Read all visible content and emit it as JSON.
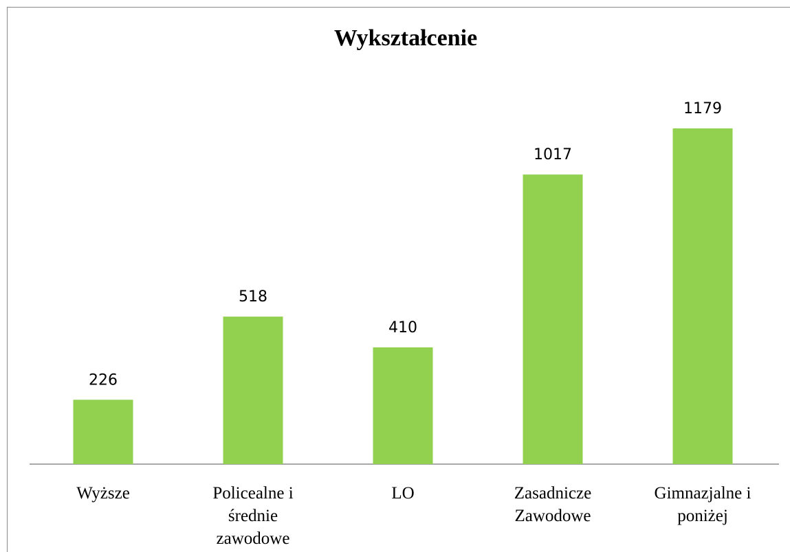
{
  "chart_data": {
    "type": "bar",
    "title": "Wykształcenie",
    "categories": [
      "Wyższe",
      "Policealne i średnie zawodowe",
      "LO",
      "Zasadnicze Zawodowe",
      "Gimnazjalne i poniżej"
    ],
    "values": [
      226,
      518,
      410,
      1017,
      1179
    ],
    "color": "#92d050"
  }
}
